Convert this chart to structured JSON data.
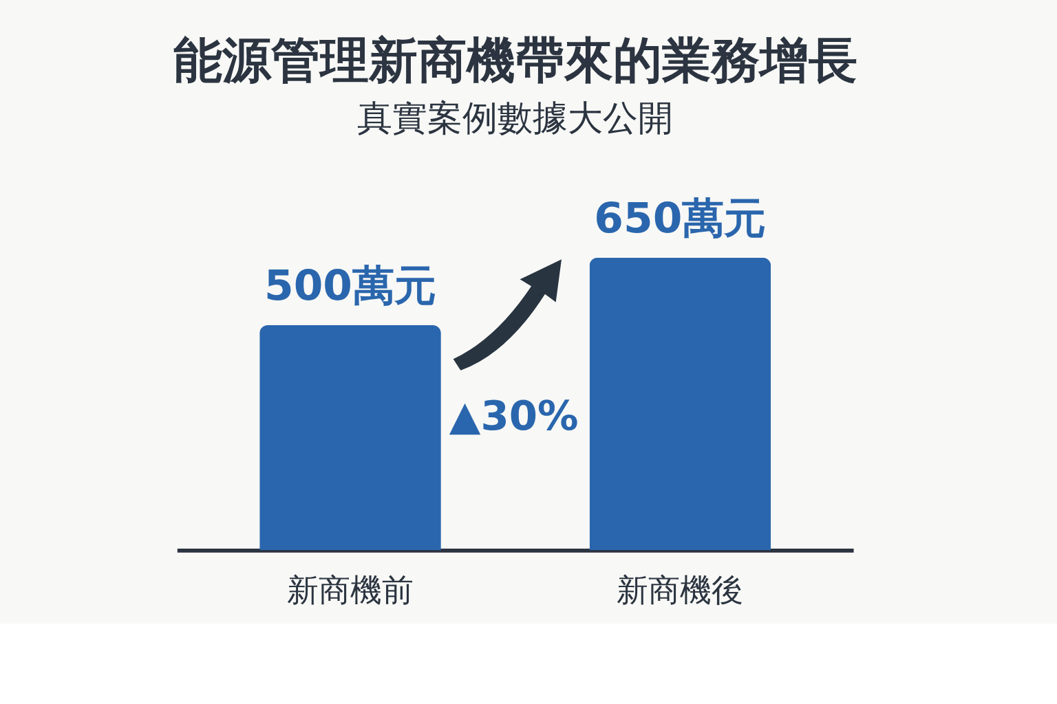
{
  "chart_data": {
    "type": "bar",
    "title": "能源管理新商機帶來的業務增長",
    "subtitle": "真實案例數據大公開",
    "categories": [
      "新商機前",
      "新商機後"
    ],
    "values": [
      500,
      650
    ],
    "color": "#2a66ad",
    "value_labels": [
      "500萬元",
      "650萬元"
    ],
    "annotations": [
      "▲30%"
    ],
    "grid": false
  }
}
